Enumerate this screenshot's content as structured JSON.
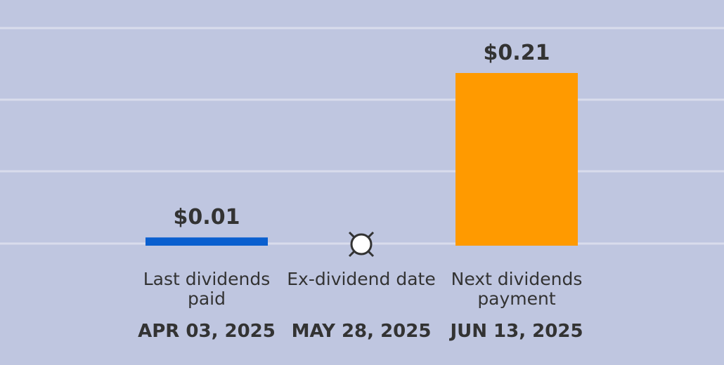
{
  "chart_data": {
    "type": "bar",
    "categories": [
      "Last dividends paid",
      "Ex-dividend date",
      "Next dividends payment"
    ],
    "dates": [
      "APR 03, 2025",
      "MAY 28, 2025",
      "JUN 13, 2025"
    ],
    "values": [
      0.01,
      null,
      0.21
    ],
    "value_labels": [
      "$0.01",
      null,
      "$0.21"
    ],
    "colors": [
      "#0a5fcf",
      "#ffffff",
      "#ff9a00"
    ],
    "ylim": [
      0,
      0.28
    ]
  }
}
